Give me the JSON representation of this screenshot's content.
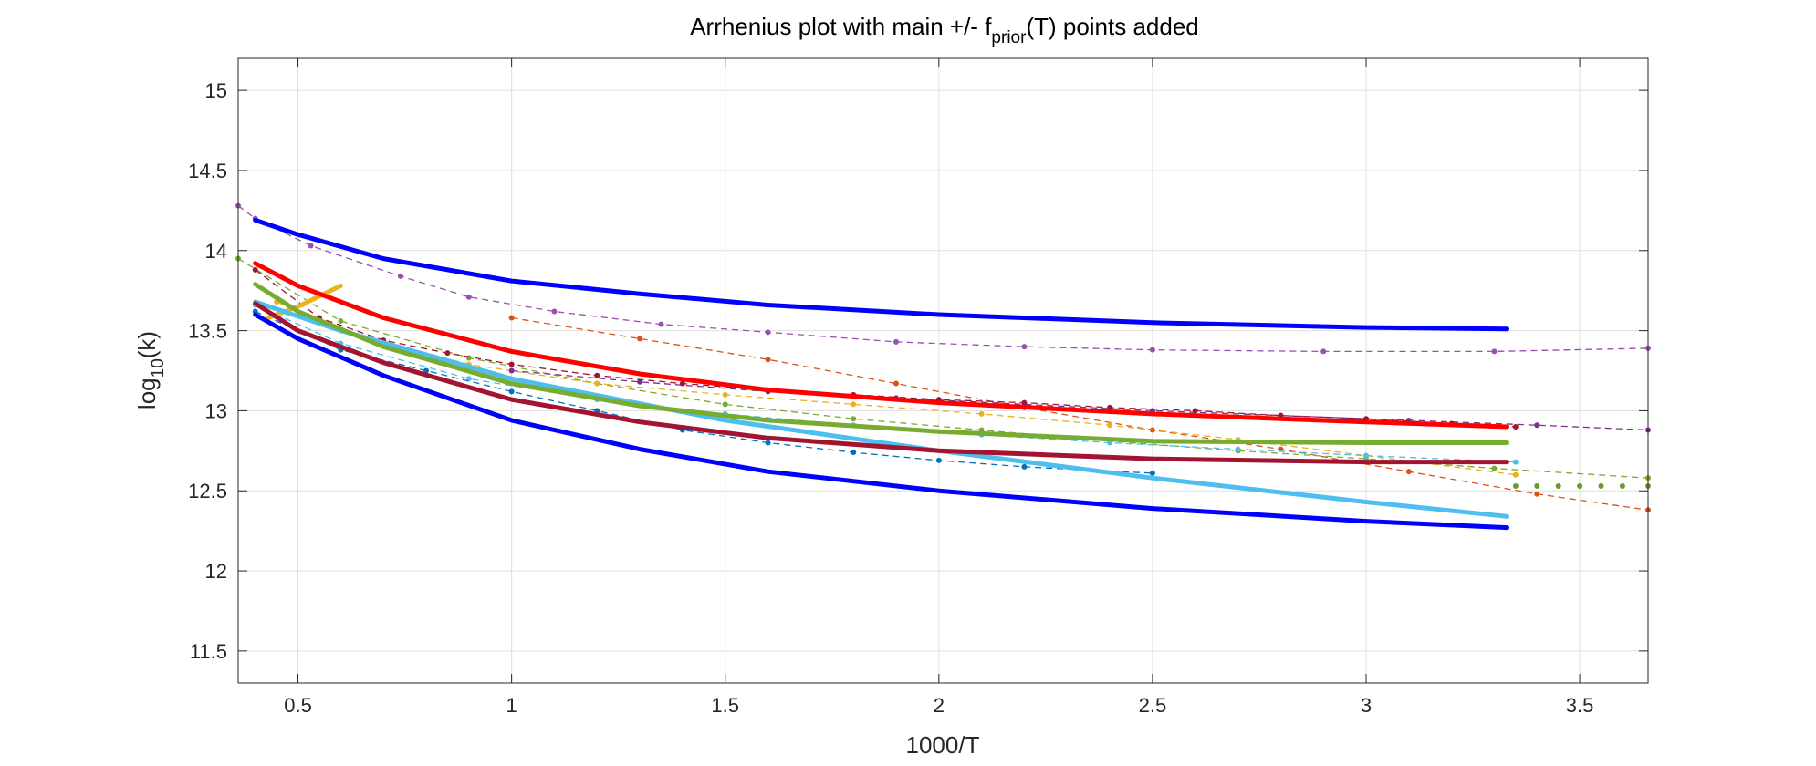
{
  "chart_data": {
    "type": "line",
    "title": {
      "pre": "Arrhenius plot with main +/- f",
      "sub": "prior",
      "post": "(T) points added"
    },
    "xlabel": "1000/T",
    "ylabel": {
      "pre": "log",
      "sub": "10",
      "post": "(k)"
    },
    "xlim": [
      0.36,
      3.66
    ],
    "ylim": [
      11.3,
      15.2
    ],
    "xticks": [
      0.5,
      1,
      1.5,
      2,
      2.5,
      3,
      3.5
    ],
    "xtick_labels": [
      "0.5",
      "1",
      "1.5",
      "2",
      "2.5",
      "3",
      "3.5"
    ],
    "yticks": [
      11.5,
      12,
      12.5,
      13,
      13.5,
      14,
      14.5,
      15
    ],
    "ytick_labels": [
      "11.5",
      "12",
      "12.5",
      "13",
      "13.5",
      "14",
      "14.5",
      "15"
    ],
    "grid": true,
    "box": true,
    "series": [
      {
        "style": "dashed-markers",
        "color": "#9b4fb0",
        "x": [
          0.36,
          0.4,
          0.53,
          0.74,
          0.9,
          1.1,
          1.35,
          1.6,
          1.9,
          2.2,
          2.5,
          2.9,
          3.3,
          3.66
        ],
        "y": [
          14.28,
          14.2,
          14.03,
          13.84,
          13.71,
          13.62,
          13.54,
          13.49,
          13.43,
          13.4,
          13.38,
          13.37,
          13.37,
          13.39
        ]
      },
      {
        "style": "dashed-markers",
        "color": "#d95319",
        "x": [
          1.0,
          1.3,
          1.6,
          1.9,
          2.2,
          2.5,
          2.8,
          3.1,
          3.4,
          3.66
        ],
        "y": [
          13.58,
          13.45,
          13.32,
          13.17,
          13.02,
          12.88,
          12.76,
          12.62,
          12.48,
          12.38
        ]
      },
      {
        "style": "dashed-markers",
        "color": "#77ac30",
        "x": [
          0.36,
          0.6,
          0.9,
          1.2,
          1.5,
          1.8,
          2.1,
          2.4,
          2.7,
          3.0,
          3.3,
          3.66
        ],
        "y": [
          13.95,
          13.56,
          13.33,
          13.17,
          13.04,
          12.95,
          12.88,
          12.81,
          12.75,
          12.7,
          12.64,
          12.58
        ]
      },
      {
        "style": "dashed-markers",
        "color": "#edb120",
        "x": [
          0.45,
          0.6,
          0.9,
          1.2,
          1.5,
          1.8,
          2.1,
          2.4,
          2.7,
          3.0,
          3.35
        ],
        "y": [
          13.68,
          13.5,
          13.29,
          13.17,
          13.1,
          13.04,
          12.98,
          12.91,
          12.82,
          12.72,
          12.6
        ]
      },
      {
        "style": "dashed-markers",
        "color": "#4dbeee",
        "x": [
          0.4,
          0.6,
          0.9,
          1.2,
          1.5,
          1.8,
          2.1,
          2.4,
          2.7,
          3.0,
          3.35
        ],
        "y": [
          13.66,
          13.42,
          13.2,
          13.07,
          12.98,
          12.91,
          12.85,
          12.8,
          12.76,
          12.72,
          12.68
        ]
      },
      {
        "style": "dashed-markers",
        "color": "#0072bd",
        "x": [
          0.4,
          0.6,
          0.8,
          1.0,
          1.2,
          1.4,
          1.6,
          1.8,
          2.0,
          2.2,
          2.5
        ],
        "y": [
          13.62,
          13.38,
          13.25,
          13.12,
          13.0,
          12.88,
          12.8,
          12.74,
          12.69,
          12.65,
          12.61
        ]
      },
      {
        "style": "dashed-markers",
        "color": "#7e2f8e",
        "x": [
          1.0,
          1.3,
          1.6,
          1.9,
          2.2,
          2.5,
          2.8,
          3.1,
          3.4,
          3.66
        ],
        "y": [
          13.25,
          13.18,
          13.12,
          13.08,
          13.04,
          13.0,
          12.97,
          12.94,
          12.91,
          12.88
        ]
      },
      {
        "style": "dashed-markers",
        "color": "#a2142f",
        "x": [
          0.4,
          0.55,
          0.7,
          0.85,
          1.0,
          1.2,
          1.4,
          1.6,
          1.8,
          2.0,
          2.2,
          2.4,
          2.6,
          2.8,
          3.0,
          3.2,
          3.35
        ],
        "y": [
          13.88,
          13.58,
          13.44,
          13.36,
          13.29,
          13.22,
          13.17,
          13.13,
          13.1,
          13.07,
          13.05,
          13.02,
          13.0,
          12.97,
          12.95,
          12.92,
          12.9
        ]
      },
      {
        "style": "dotted-markers",
        "color": "#6a9a2a",
        "x": [
          3.35,
          3.4,
          3.45,
          3.5,
          3.55,
          3.6,
          3.66
        ],
        "y": [
          12.53,
          12.53,
          12.53,
          12.53,
          12.53,
          12.53,
          12.53
        ]
      },
      {
        "style": "solid",
        "color": "#edb120",
        "width": 5,
        "x": [
          0.43,
          0.5,
          0.6
        ],
        "y": [
          13.58,
          13.65,
          13.78
        ]
      },
      {
        "style": "solid",
        "color": "#0000ff",
        "width": 5,
        "x": [
          0.4,
          0.5,
          0.7,
          1.0,
          1.3,
          1.6,
          2.0,
          2.5,
          3.0,
          3.33
        ],
        "y": [
          14.19,
          14.1,
          13.95,
          13.81,
          13.73,
          13.66,
          13.6,
          13.55,
          13.52,
          13.51
        ]
      },
      {
        "style": "solid",
        "color": "#0000ff",
        "width": 5,
        "x": [
          0.4,
          0.5,
          0.7,
          1.0,
          1.3,
          1.6,
          2.0,
          2.5,
          3.0,
          3.33
        ],
        "y": [
          13.6,
          13.45,
          13.22,
          12.94,
          12.76,
          12.62,
          12.5,
          12.39,
          12.31,
          12.27
        ]
      },
      {
        "style": "solid",
        "color": "#4dbeee",
        "width": 5,
        "x": [
          0.4,
          0.6,
          1.0,
          1.5,
          2.0,
          2.5,
          3.0,
          3.33
        ],
        "y": [
          13.68,
          13.5,
          13.2,
          12.94,
          12.75,
          12.58,
          12.43,
          12.34
        ]
      },
      {
        "style": "solid",
        "color": "#77ac30",
        "width": 5,
        "x": [
          0.4,
          0.5,
          0.7,
          1.0,
          1.3,
          1.6,
          2.0,
          2.5,
          3.0,
          3.33
        ],
        "y": [
          13.79,
          13.62,
          13.4,
          13.17,
          13.03,
          12.94,
          12.87,
          12.81,
          12.8,
          12.8
        ]
      },
      {
        "style": "solid",
        "color": "#a2142f",
        "width": 5,
        "x": [
          0.4,
          0.5,
          0.7,
          1.0,
          1.3,
          1.6,
          2.0,
          2.5,
          3.0,
          3.33
        ],
        "y": [
          13.67,
          13.5,
          13.3,
          13.07,
          12.93,
          12.83,
          12.75,
          12.7,
          12.68,
          12.68
        ]
      },
      {
        "style": "solid",
        "color": "#ff0000",
        "width": 5,
        "x": [
          0.4,
          0.5,
          0.7,
          1.0,
          1.3,
          1.6,
          2.0,
          2.5,
          3.0,
          3.33
        ],
        "y": [
          13.92,
          13.78,
          13.58,
          13.37,
          13.23,
          13.13,
          13.05,
          12.98,
          12.93,
          12.9
        ]
      }
    ]
  }
}
